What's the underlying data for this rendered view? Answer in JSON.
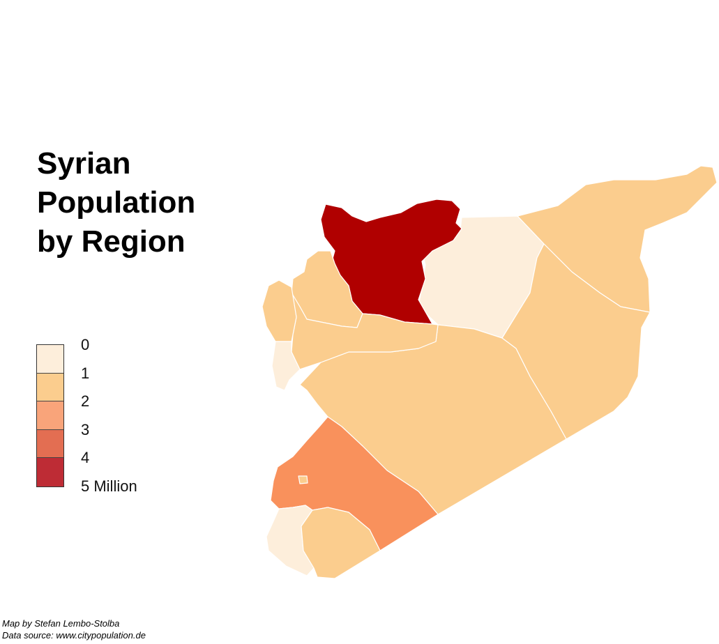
{
  "title": {
    "line1": "Syrian",
    "line2": "Population",
    "line3": "by Region"
  },
  "legend": {
    "labels": [
      "0",
      "1",
      "2",
      "3",
      "4",
      "5 Million"
    ],
    "colors": [
      "#fdeedb",
      "#fbcd8e",
      "#f9a47a",
      "#e36e52",
      "#be2c35"
    ]
  },
  "credits": {
    "author": "Map by Stefan Lembo-Stolba",
    "source": "Data source: www.citypopulation.de"
  },
  "colors": {
    "level_0_1": "#fdeedb",
    "level_1_2": "#fbcd8e",
    "level_2_3": "#f9915c",
    "level_4_5": "#b00000",
    "background": "#ffffff",
    "border": "#ffffff"
  },
  "regions": [
    {
      "id": "aleppo",
      "level": "4-5 million"
    },
    {
      "id": "raqqa",
      "level": "0-1 million"
    },
    {
      "id": "hasakah",
      "level": "1-2 million"
    },
    {
      "id": "deir-ez-zor",
      "level": "1-2 million"
    },
    {
      "id": "homs",
      "level": "1-2 million"
    },
    {
      "id": "hama",
      "level": "1-2 million"
    },
    {
      "id": "idlib",
      "level": "1-2 million"
    },
    {
      "id": "latakia",
      "level": "1-2 million"
    },
    {
      "id": "tartus",
      "level": "0-1 million"
    },
    {
      "id": "rif-dimashq",
      "level": "2-3 million"
    },
    {
      "id": "damascus",
      "level": "1-2 million"
    },
    {
      "id": "quneitra",
      "level": "0-1 million"
    },
    {
      "id": "daraa",
      "level": "1-2 million"
    },
    {
      "id": "as-suwayda",
      "level": "0-1 million"
    }
  ]
}
